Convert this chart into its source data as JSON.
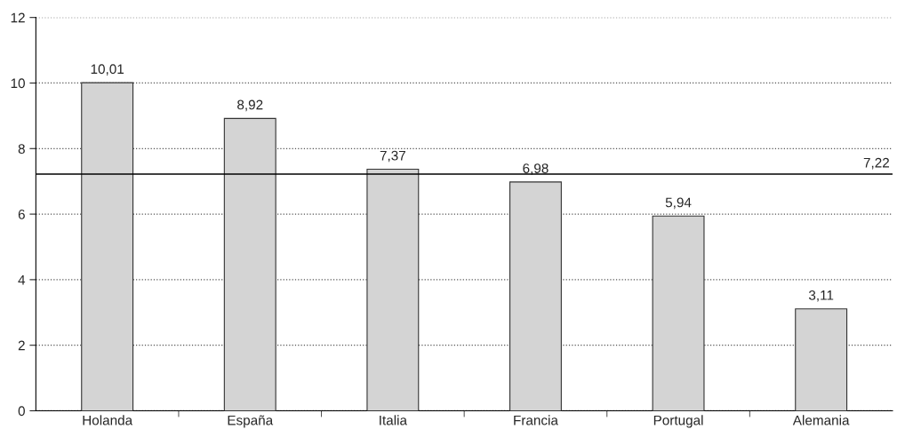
{
  "chart_data": {
    "type": "bar",
    "categories": [
      "Holanda",
      "España",
      "Italia",
      "Francia",
      "Portugal",
      "Alemania"
    ],
    "values": [
      10.01,
      8.92,
      7.37,
      6.98,
      5.94,
      3.11
    ],
    "value_labels": [
      "10,01",
      "8,92",
      "7,37",
      "6,98",
      "5,94",
      "3,11"
    ],
    "color": "#d4d4d4",
    "ylim": [
      0,
      12
    ],
    "yticks": [
      0,
      2,
      4,
      6,
      8,
      10,
      12
    ],
    "grid": "y",
    "ref_lines": [
      {
        "axis": "y",
        "value": 7.22,
        "label": "7,22",
        "color": "#000000"
      }
    ]
  }
}
